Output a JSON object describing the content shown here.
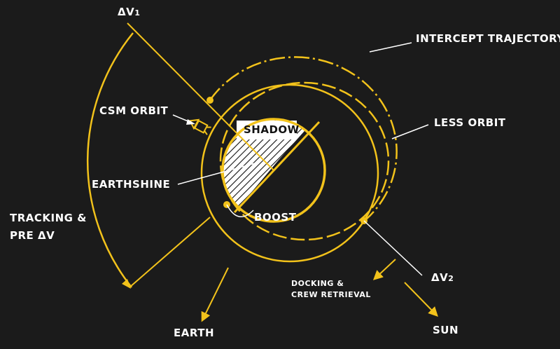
{
  "labels": {
    "dv1": "ΔV",
    "dv1_sub": "1",
    "dv2": "ΔV",
    "dv2_sub": "2",
    "intercept_trajectory": "INTERCEPT TRAJECTORY",
    "csm_orbit": "CSM ORBIT",
    "less_orbit": "LESS ORBIT",
    "shadow": "SHADOW",
    "earthshine": "EARTHSHINE",
    "boost": "BOOST",
    "tracking_line1": "TRACKING &",
    "tracking_line2": "PRE ΔV",
    "docking_line1": "DOCKING &",
    "docking_line2": "CREW RETRIEVAL",
    "earth": "EARTH",
    "sun": "SUN"
  },
  "colors": {
    "background": "#1b1b1b",
    "orbit": "#f2c21b",
    "text": "#ffffff"
  }
}
